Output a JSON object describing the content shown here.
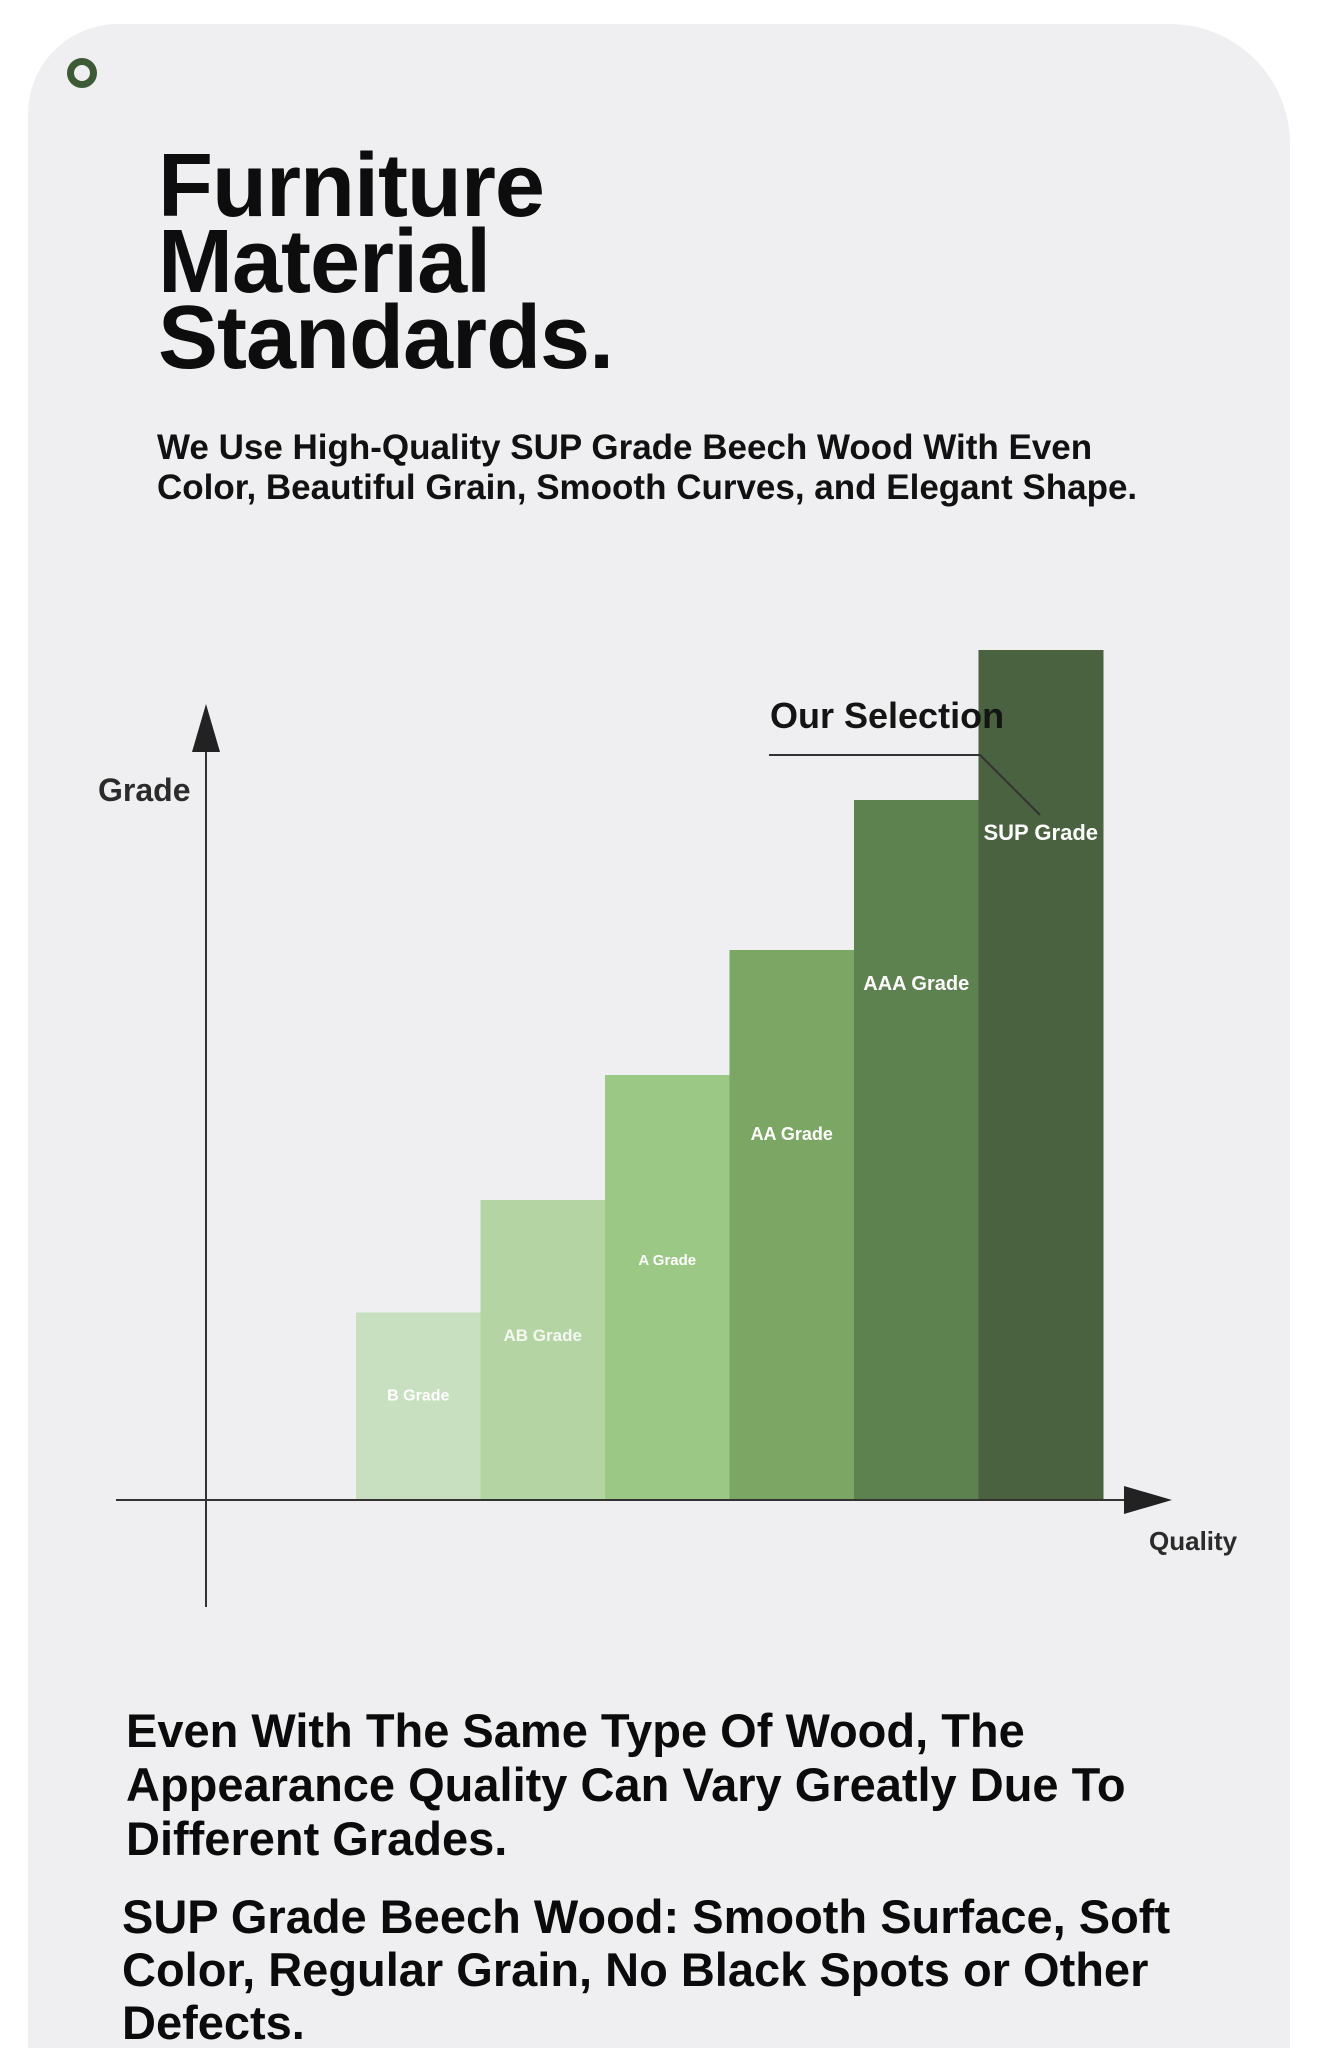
{
  "header": {
    "title_lines": [
      "Furniture",
      "Material",
      "Standards."
    ],
    "subtitle": "We Use High-Quality SUP Grade Beech Wood With Even Color, Beautiful Grain, Smooth Curves, and Elegant Shape."
  },
  "chart_data": {
    "type": "bar",
    "categories": [
      "B Grade",
      "AB Grade",
      "A Grade",
      "AA Grade",
      "AAA Grade",
      "SUP Grade"
    ],
    "values": [
      1.5,
      2.4,
      3.4,
      4.4,
      5.6,
      6.8
    ],
    "ylim": [
      0,
      8
    ],
    "xlabel": "Quality",
    "ylabel": "Grade",
    "annotation": "Our Selection",
    "annotated_category": "SUP Grade",
    "grid": false,
    "legend": false,
    "colors": [
      "#c8e0bf",
      "#b5d4a4",
      "#9bc885",
      "#7ba663",
      "#5e8150",
      "#4a623f"
    ]
  },
  "body": {
    "paragraph_1": "Even With The Same Type Of Wood, The Appearance Quality Can Vary Greatly Due To Different Grades.",
    "paragraph_2": "SUP Grade Beech Wood: Smooth Surface, Soft Color, Regular Grain, No Black Spots or Other Defects."
  }
}
